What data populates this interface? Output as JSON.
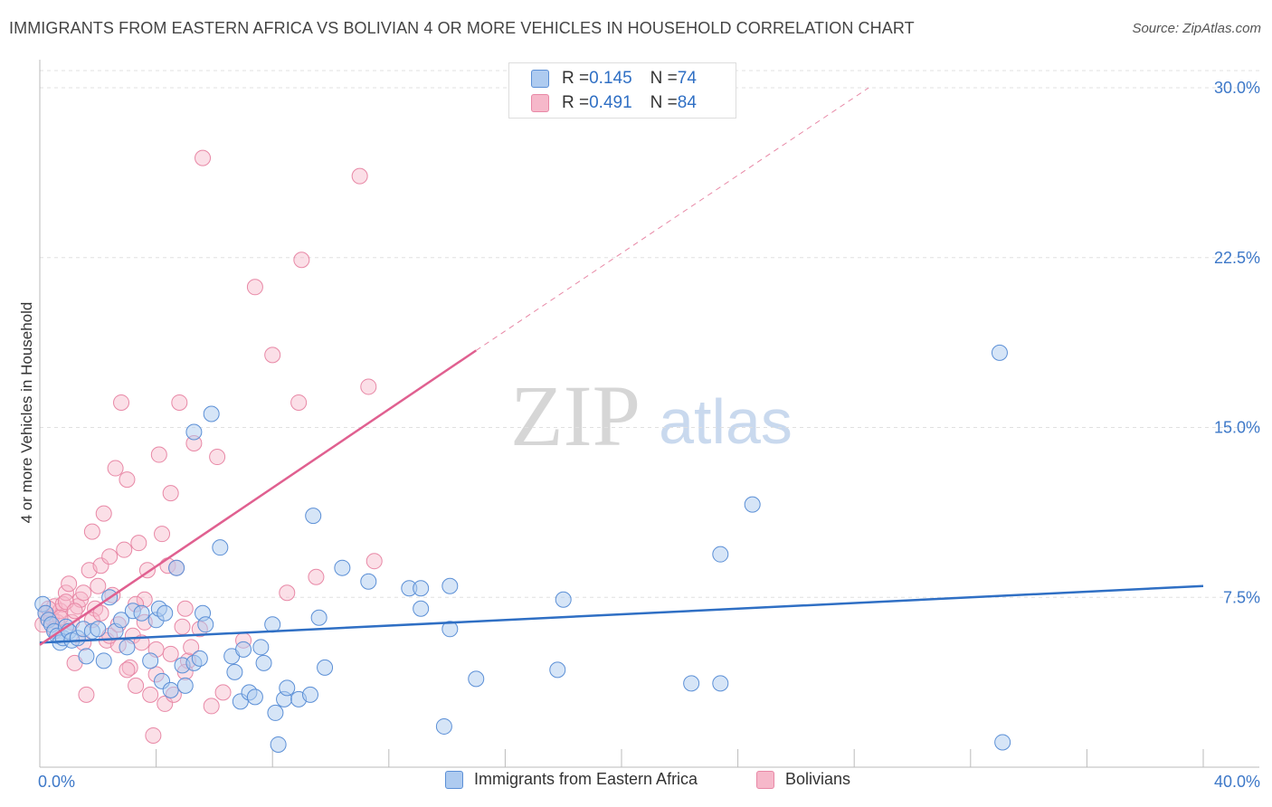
{
  "title": "IMMIGRANTS FROM EASTERN AFRICA VS BOLIVIAN 4 OR MORE VEHICLES IN HOUSEHOLD CORRELATION CHART",
  "source": "Source: ZipAtlas.com",
  "watermark": {
    "zip": "ZIP",
    "atlas": "atlas"
  },
  "legend_top": {
    "rows": [
      {
        "r_label": "R = ",
        "r_value": "0.145",
        "n_label": "N = ",
        "n_value": "74"
      },
      {
        "r_label": "R = ",
        "r_value": "0.491",
        "n_label": "N = ",
        "n_value": "84"
      }
    ]
  },
  "legend_bottom": {
    "items": [
      {
        "label": "Immigrants from Eastern Africa"
      },
      {
        "label": "Bolivians"
      }
    ]
  },
  "colors": {
    "blue_fill": "#aecbf0",
    "blue_stroke": "#5b8fd6",
    "blue_line": "#2f6fc4",
    "pink_fill": "#f6b8ca",
    "pink_stroke": "#e888a6",
    "pink_line": "#e06090",
    "axis_label": "#3d78c8",
    "grid": "#e0e0e0"
  },
  "chart_data": {
    "type": "scatter",
    "title": "IMMIGRANTS FROM EASTERN AFRICA VS BOLIVIAN 4 OR MORE VEHICLES IN HOUSEHOLD CORRELATION CHART",
    "xlabel": "",
    "ylabel": "4 or more Vehicles in Household",
    "xlim": [
      0,
      40
    ],
    "ylim": [
      0,
      30
    ],
    "x_tick_labels": [
      "0.0%",
      "40.0%"
    ],
    "y_ticks": [
      7.5,
      15.0,
      22.5,
      30.0
    ],
    "y_tick_labels": [
      "7.5%",
      "15.0%",
      "22.5%",
      "30.0%"
    ],
    "grid": "horizontal dashed",
    "legend_position": "top-center",
    "series": [
      {
        "name": "Immigrants from Eastern Africa",
        "color": "#5b8fd6",
        "trend": {
          "x": [
            0,
            40
          ],
          "y": [
            5.5,
            8.0
          ]
        },
        "points": [
          [
            0.1,
            7.2
          ],
          [
            0.2,
            6.8
          ],
          [
            0.3,
            6.5
          ],
          [
            0.4,
            6.3
          ],
          [
            0.5,
            6.0
          ],
          [
            0.6,
            5.8
          ],
          [
            0.7,
            5.5
          ],
          [
            0.8,
            5.7
          ],
          [
            0.9,
            6.2
          ],
          [
            1.0,
            6.0
          ],
          [
            1.1,
            5.6
          ],
          [
            1.3,
            5.7
          ],
          [
            1.5,
            6.1
          ],
          [
            1.6,
            4.9
          ],
          [
            1.8,
            6.0
          ],
          [
            2.0,
            6.1
          ],
          [
            2.2,
            4.7
          ],
          [
            2.4,
            7.5
          ],
          [
            2.6,
            6.0
          ],
          [
            2.8,
            6.5
          ],
          [
            3.0,
            5.3
          ],
          [
            3.2,
            6.9
          ],
          [
            3.5,
            6.8
          ],
          [
            3.8,
            4.7
          ],
          [
            4.0,
            6.5
          ],
          [
            4.1,
            7.0
          ],
          [
            4.2,
            3.8
          ],
          [
            4.5,
            3.4
          ],
          [
            4.7,
            8.8
          ],
          [
            4.9,
            4.5
          ],
          [
            5.0,
            3.6
          ],
          [
            5.3,
            4.6
          ],
          [
            5.5,
            4.8
          ],
          [
            5.3,
            14.8
          ],
          [
            5.6,
            6.8
          ],
          [
            5.7,
            6.3
          ],
          [
            5.9,
            15.6
          ],
          [
            6.2,
            9.7
          ],
          [
            6.6,
            4.9
          ],
          [
            6.7,
            4.2
          ],
          [
            6.9,
            2.9
          ],
          [
            7.0,
            5.2
          ],
          [
            7.2,
            3.3
          ],
          [
            7.4,
            3.1
          ],
          [
            7.6,
            5.3
          ],
          [
            7.7,
            4.6
          ],
          [
            8.0,
            6.3
          ],
          [
            8.1,
            2.4
          ],
          [
            8.2,
            1.0
          ],
          [
            8.4,
            3.0
          ],
          [
            8.5,
            3.5
          ],
          [
            8.9,
            3.0
          ],
          [
            9.3,
            3.2
          ],
          [
            9.4,
            11.1
          ],
          [
            9.6,
            6.6
          ],
          [
            9.8,
            4.4
          ],
          [
            10.4,
            8.8
          ],
          [
            11.3,
            8.2
          ],
          [
            12.7,
            7.9
          ],
          [
            13.1,
            7.0
          ],
          [
            13.1,
            7.9
          ],
          [
            13.9,
            1.8
          ],
          [
            14.1,
            6.1
          ],
          [
            14.1,
            8.0
          ],
          [
            15.0,
            3.9
          ],
          [
            17.8,
            4.3
          ],
          [
            18.0,
            7.4
          ],
          [
            22.4,
            3.7
          ],
          [
            23.4,
            3.7
          ],
          [
            23.4,
            9.4
          ],
          [
            24.5,
            11.6
          ],
          [
            33.0,
            18.3
          ],
          [
            33.1,
            1.1
          ],
          [
            4.3,
            6.8
          ]
        ]
      },
      {
        "name": "Bolivians",
        "color": "#e888a6",
        "trend": {
          "x": [
            0,
            15
          ],
          "y": [
            5.4,
            18.4
          ],
          "extended": {
            "x": [
              15,
              28.5
            ],
            "y": [
              18.4,
              30.0
            ]
          }
        },
        "points": [
          [
            0.1,
            6.3
          ],
          [
            0.2,
            6.8
          ],
          [
            0.3,
            6.5
          ],
          [
            0.4,
            6.6
          ],
          [
            0.5,
            7.1
          ],
          [
            0.6,
            6.4
          ],
          [
            0.7,
            6.9
          ],
          [
            0.8,
            7.2
          ],
          [
            0.9,
            7.7
          ],
          [
            1.0,
            8.1
          ],
          [
            1.1,
            6.4
          ],
          [
            1.2,
            4.6
          ],
          [
            1.3,
            7.1
          ],
          [
            1.4,
            7.4
          ],
          [
            1.5,
            7.7
          ],
          [
            1.6,
            3.2
          ],
          [
            1.7,
            8.7
          ],
          [
            1.8,
            10.4
          ],
          [
            1.9,
            7.0
          ],
          [
            2.0,
            8.0
          ],
          [
            2.1,
            8.9
          ],
          [
            2.2,
            11.2
          ],
          [
            2.3,
            5.6
          ],
          [
            2.4,
            9.3
          ],
          [
            2.5,
            7.6
          ],
          [
            2.6,
            13.2
          ],
          [
            2.7,
            5.4
          ],
          [
            2.8,
            16.1
          ],
          [
            2.9,
            9.6
          ],
          [
            3.0,
            12.7
          ],
          [
            3.1,
            4.4
          ],
          [
            3.2,
            5.8
          ],
          [
            3.3,
            3.6
          ],
          [
            3.4,
            9.9
          ],
          [
            3.5,
            5.5
          ],
          [
            3.6,
            7.4
          ],
          [
            3.7,
            8.7
          ],
          [
            3.8,
            3.2
          ],
          [
            3.9,
            1.4
          ],
          [
            4.0,
            4.1
          ],
          [
            4.1,
            13.8
          ],
          [
            4.2,
            10.3
          ],
          [
            4.3,
            2.8
          ],
          [
            4.4,
            8.9
          ],
          [
            4.5,
            12.1
          ],
          [
            4.6,
            3.2
          ],
          [
            4.7,
            8.8
          ],
          [
            4.8,
            16.1
          ],
          [
            4.9,
            6.2
          ],
          [
            5.0,
            7.0
          ],
          [
            5.1,
            4.7
          ],
          [
            5.2,
            5.3
          ],
          [
            5.3,
            14.3
          ],
          [
            5.6,
            26.9
          ],
          [
            5.9,
            2.7
          ],
          [
            6.1,
            13.7
          ],
          [
            6.3,
            3.3
          ],
          [
            7.0,
            5.6
          ],
          [
            7.4,
            21.2
          ],
          [
            8.0,
            18.2
          ],
          [
            8.5,
            7.7
          ],
          [
            8.9,
            16.1
          ],
          [
            9.0,
            22.4
          ],
          [
            9.5,
            8.4
          ],
          [
            11.0,
            26.1
          ],
          [
            11.3,
            16.8
          ],
          [
            11.5,
            9.1
          ],
          [
            0.3,
            7.0
          ],
          [
            0.5,
            6.1
          ],
          [
            0.7,
            6.6
          ],
          [
            0.9,
            7.3
          ],
          [
            1.2,
            6.9
          ],
          [
            1.5,
            5.5
          ],
          [
            1.8,
            6.5
          ],
          [
            2.1,
            6.8
          ],
          [
            2.4,
            5.8
          ],
          [
            2.7,
            6.3
          ],
          [
            3.0,
            4.3
          ],
          [
            3.3,
            7.2
          ],
          [
            3.6,
            6.4
          ],
          [
            4.0,
            5.2
          ],
          [
            4.5,
            5.0
          ],
          [
            5.0,
            4.2
          ],
          [
            5.5,
            6.1
          ]
        ]
      }
    ]
  }
}
